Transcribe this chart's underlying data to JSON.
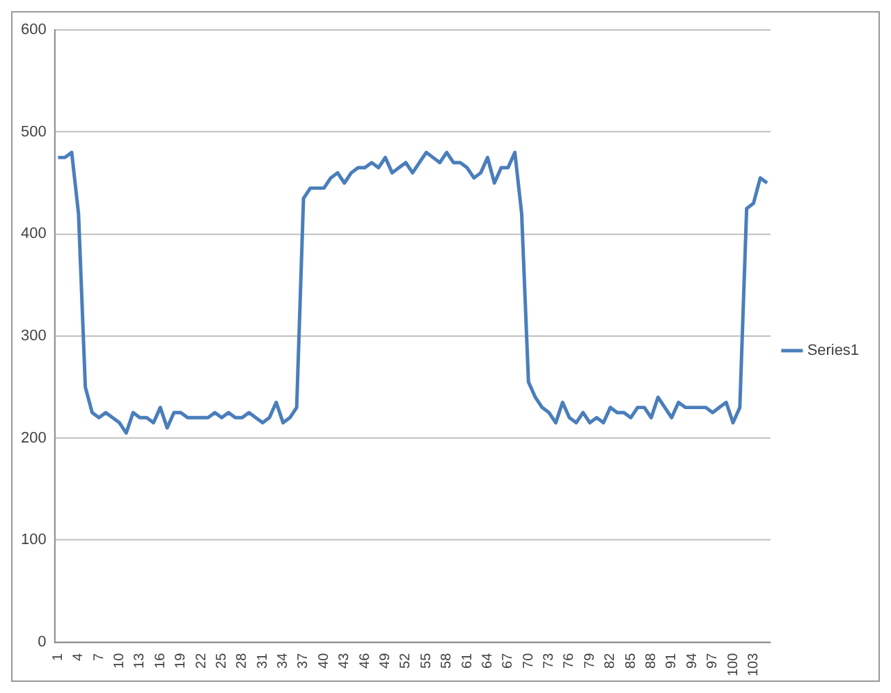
{
  "chart_data": {
    "type": "line",
    "categories": [
      "1",
      null,
      null,
      "4",
      null,
      null,
      "7",
      null,
      null,
      "10",
      null,
      null,
      "13",
      null,
      null,
      "16",
      null,
      null,
      "19",
      null,
      null,
      "22",
      null,
      null,
      "25",
      null,
      null,
      "28",
      null,
      null,
      "31",
      null,
      null,
      "34",
      null,
      null,
      "37",
      null,
      null,
      "40",
      null,
      null,
      "43",
      null,
      null,
      "46",
      null,
      null,
      "49",
      null,
      null,
      "52",
      null,
      null,
      "55",
      null,
      null,
      "58",
      null,
      null,
      "61",
      null,
      null,
      "64",
      null,
      null,
      "67",
      null,
      null,
      "70",
      null,
      null,
      "73",
      null,
      null,
      "76",
      null,
      null,
      "79",
      null,
      null,
      "82",
      null,
      null,
      "85",
      null,
      null,
      "88",
      null,
      null,
      "91",
      null,
      null,
      "94",
      null,
      null,
      "97",
      null,
      null,
      "100",
      null,
      null,
      "103",
      null,
      null
    ],
    "series": [
      {
        "name": "Series1",
        "color": "#4a7ebb",
        "values": [
          475,
          475,
          480,
          420,
          250,
          225,
          220,
          225,
          220,
          215,
          205,
          225,
          220,
          220,
          215,
          230,
          210,
          225,
          225,
          220,
          220,
          220,
          220,
          225,
          220,
          225,
          220,
          220,
          225,
          220,
          215,
          220,
          235,
          215,
          220,
          230,
          435,
          445,
          445,
          445,
          455,
          460,
          450,
          460,
          465,
          465,
          470,
          465,
          475,
          460,
          465,
          470,
          460,
          470,
          480,
          475,
          470,
          480,
          470,
          470,
          465,
          455,
          460,
          475,
          450,
          465,
          465,
          480,
          420,
          255,
          240,
          230,
          225,
          215,
          235,
          220,
          215,
          225,
          215,
          220,
          215,
          230,
          225,
          225,
          220,
          230,
          230,
          220,
          240,
          230,
          220,
          235,
          230,
          230,
          230,
          230,
          225,
          230,
          235,
          215,
          230,
          425,
          430,
          455,
          450
        ]
      }
    ],
    "ylim": [
      0,
      600
    ],
    "yticks": [
      0,
      100,
      200,
      300,
      400,
      500,
      600
    ],
    "grid": "y",
    "legend": "right",
    "marker": "none",
    "line_style": "solid"
  }
}
